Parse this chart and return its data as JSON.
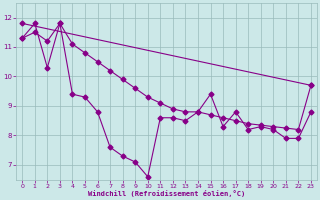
{
  "xlabel": "Windchill (Refroidissement éolien,°C)",
  "bg_color": "#cce8e8",
  "line_color": "#880088",
  "grid_color": "#99bbbb",
  "ylim": [
    6.5,
    12.5
  ],
  "xlim": [
    -0.5,
    23.5
  ],
  "yticks": [
    7,
    8,
    9,
    10,
    11,
    12
  ],
  "xticks": [
    0,
    1,
    2,
    3,
    4,
    5,
    6,
    7,
    8,
    9,
    10,
    11,
    12,
    13,
    14,
    15,
    16,
    17,
    18,
    19,
    20,
    21,
    22,
    23
  ],
  "line1_x": [
    0,
    1,
    2,
    3,
    4,
    5,
    6,
    7,
    8,
    9,
    10,
    11,
    12,
    13,
    14,
    15,
    16,
    17,
    18,
    19,
    20,
    21,
    22,
    23
  ],
  "line1_y": [
    11.3,
    11.8,
    10.3,
    11.8,
    9.4,
    9.3,
    8.8,
    7.6,
    7.3,
    7.1,
    6.6,
    8.6,
    8.6,
    8.5,
    8.8,
    9.4,
    8.3,
    8.8,
    8.2,
    8.3,
    8.2,
    7.9,
    7.9,
    8.8
  ],
  "line2_x": [
    0,
    23
  ],
  "line2_y": [
    11.8,
    9.7
  ],
  "line3_x": [
    0,
    1,
    2,
    3,
    4,
    5,
    6,
    7,
    8,
    9,
    10,
    11,
    12,
    13,
    14,
    15,
    16,
    17,
    18,
    19,
    20,
    21,
    22,
    23
  ],
  "line3_y": [
    11.3,
    11.5,
    11.2,
    11.8,
    11.1,
    10.8,
    10.5,
    10.2,
    9.9,
    9.6,
    9.3,
    9.1,
    8.9,
    8.8,
    8.8,
    8.7,
    8.6,
    8.5,
    8.4,
    8.35,
    8.3,
    8.25,
    8.2,
    9.7
  ]
}
